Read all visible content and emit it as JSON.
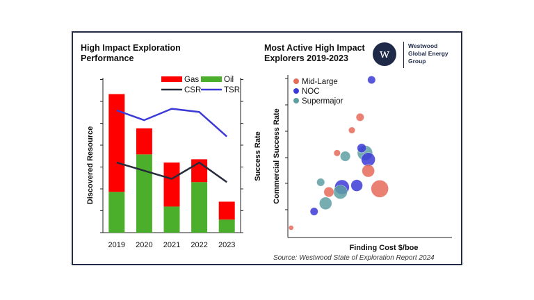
{
  "colors": {
    "gas": "#ff0000",
    "oil": "#4caf2c",
    "csr": "#262b3c",
    "tsr": "#3c3ad6",
    "mid_large": "#e66a58",
    "noc": "#3c3ad6",
    "supermajor": "#5e9fa3",
    "frame": "#232b48"
  },
  "logo": {
    "mark": "w",
    "line1": "Westwood",
    "line2": "Global Energy",
    "line3": "Group"
  },
  "source": "Source: Westwood State of Exploration Report 2024",
  "chart_data": [
    {
      "type": "bar",
      "stacked": true,
      "title_line1": "High Impact Exploration",
      "title_line2": "Performance",
      "ylabel": "Discovered Resource",
      "categories": [
        "2019",
        "2020",
        "2021",
        "2022",
        "2023"
      ],
      "series": [
        {
          "name": "Oil",
          "values": [
            25,
            48,
            16,
            31,
            8
          ]
        },
        {
          "name": "Gas",
          "values": [
            60,
            16,
            27,
            14,
            11
          ]
        }
      ],
      "lines": [
        {
          "name": "CSR",
          "values": [
            43,
            38,
            33,
            43,
            31
          ]
        },
        {
          "name": "TSR",
          "values": [
            75,
            69,
            76,
            74,
            59
          ]
        }
      ],
      "ylim": [
        0,
        95
      ],
      "legend": [
        "Gas",
        "Oil",
        "CSR",
        "TSR"
      ],
      "legend_position": "top-right"
    },
    {
      "type": "scatter",
      "bubble": true,
      "title_line1": "Most Active High Impact",
      "title_line2": "Explorers 2019-2023",
      "xlabel": "Finding Cost $/boe",
      "ylabel_outer": "Success Rate",
      "ylabel_inner": "Commercial Success Rate",
      "xlim": [
        0,
        10
      ],
      "ylim": [
        0,
        10
      ],
      "legend": [
        "Mid-Large",
        "NOC",
        "Supermajor"
      ],
      "legend_position": "top-left",
      "points": [
        {
          "group": "Mid-Large",
          "x": 0.2,
          "y": 0.6,
          "size": 1
        },
        {
          "group": "Mid-Large",
          "x": 2.5,
          "y": 2.8,
          "size": 5
        },
        {
          "group": "Mid-Large",
          "x": 3.0,
          "y": 5.2,
          "size": 2
        },
        {
          "group": "Mid-Large",
          "x": 3.9,
          "y": 6.6,
          "size": 2
        },
        {
          "group": "Mid-Large",
          "x": 4.4,
          "y": 7.4,
          "size": 3
        },
        {
          "group": "Mid-Large",
          "x": 4.9,
          "y": 4.1,
          "size": 8
        },
        {
          "group": "Mid-Large",
          "x": 5.6,
          "y": 3.0,
          "size": 16
        },
        {
          "group": "NOC",
          "x": 1.6,
          "y": 1.6,
          "size": 3
        },
        {
          "group": "NOC",
          "x": 3.3,
          "y": 3.1,
          "size": 11
        },
        {
          "group": "NOC",
          "x": 4.2,
          "y": 3.2,
          "size": 7
        },
        {
          "group": "NOC",
          "x": 4.5,
          "y": 5.5,
          "size": 4
        },
        {
          "group": "NOC",
          "x": 4.9,
          "y": 4.8,
          "size": 10
        },
        {
          "group": "NOC",
          "x": 5.1,
          "y": 9.7,
          "size": 3
        },
        {
          "group": "Supermajor",
          "x": 2.0,
          "y": 3.4,
          "size": 3
        },
        {
          "group": "Supermajor",
          "x": 2.3,
          "y": 2.1,
          "size": 8
        },
        {
          "group": "Supermajor",
          "x": 3.2,
          "y": 2.8,
          "size": 10
        },
        {
          "group": "Supermajor",
          "x": 3.5,
          "y": 5.0,
          "size": 5
        },
        {
          "group": "Supermajor",
          "x": 4.7,
          "y": 5.2,
          "size": 12
        }
      ]
    }
  ]
}
